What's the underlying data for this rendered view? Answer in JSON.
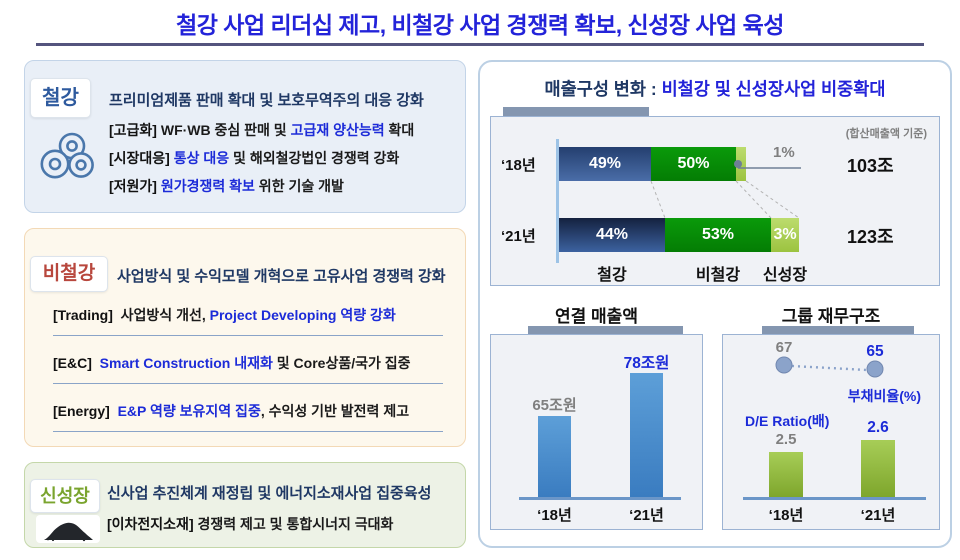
{
  "slide_title": "철강 사업 리더십 제고, 비철강 사업 경쟁력 확보, 신성장 사업 육성",
  "colors": {
    "title_blue": "#2323d9",
    "navy": "#1f3864",
    "highlight_blue": "#1c2bd8",
    "steel_label": "#2e5a9e",
    "nonsteel_label": "#b8473d",
    "newgrowth_label": "#7aa42e",
    "bar_steel_navy": "#2e4f85",
    "bar_nonsteel_green": "#088c08",
    "bar_newgrowth_lightgreen": "#a6cc52",
    "revenue_bar_blue": "#4a90cf",
    "de_ratio_bar_green": "#96bc40",
    "gray_text": "#7f7f7f"
  },
  "left_panels": [
    {
      "id": "steel",
      "label": "철강",
      "icon": "steel-coils-icon",
      "headline": "프리미엄제품 판매 확대 및 보호무역주의 대응 강화",
      "items": [
        {
          "tag": "[고급화]",
          "pre": " WF·WB 중심 판매 및 ",
          "highlight": "고급재 양산능력",
          "post": " 확대"
        },
        {
          "tag": "[시장대응]",
          "pre": " ",
          "highlight": "통상 대응",
          "post": " 및 해외철강법인 경쟁력 강화"
        },
        {
          "tag": "[저원가]",
          "pre": " ",
          "highlight": "원가경쟁력 확보",
          "post": " 위한 기술 개발"
        }
      ]
    },
    {
      "id": "nonsteel",
      "label": "비철강",
      "headline": "사업방식 및 수익모델 개혁으로 고유사업 경쟁력 강화",
      "items": [
        {
          "tag": "[Trading]",
          "pre": "  사업방식 개선, ",
          "highlight": "Project Developing 역량 강화",
          "post": ""
        },
        {
          "tag": "[E&C]",
          "pre": "  ",
          "highlight": "Smart Construction 내재화",
          "post": " 및 Core상품/국가 집중"
        },
        {
          "tag": "[Energy]",
          "pre": "  ",
          "highlight": "E&P 역량 보유지역 집중",
          "post": ", 수익성 기반 발전력 제고"
        }
      ]
    },
    {
      "id": "newgrowth",
      "label": "신성장",
      "icon": "battery-powder-icon",
      "headline": "신사업 추진체계 재정립 및 에너지소재사업 집중육성",
      "items": [
        {
          "tag": "[이차전지소재]",
          "pre": " 경쟁력 제고 및 통합시너지 극대화",
          "highlight": "",
          "post": ""
        }
      ]
    }
  ],
  "chart_data": [
    {
      "type": "bar",
      "subtype": "horizontal-stacked",
      "title": "매출구성 변화 : 비철강 및 신성장사업 비중확대",
      "title_prefix": "매출구성 변화 : ",
      "title_emphasis": "비철강 및 신성장사업 비중확대",
      "note": "(합산매출액 기준)",
      "categories": [
        "‘18년",
        "‘21년"
      ],
      "series": [
        {
          "name": "철강",
          "values": [
            49,
            44
          ]
        },
        {
          "name": "비철강",
          "values": [
            50,
            53
          ]
        },
        {
          "name": "신성장",
          "values": [
            1,
            3
          ]
        }
      ],
      "bar_labels": [
        [
          "49%",
          "50%",
          "1%"
        ],
        [
          "44%",
          "53%",
          "3%"
        ]
      ],
      "totals": [
        "103조",
        "123조"
      ],
      "callout": {
        "text": "1%",
        "series": "신성장",
        "category": "‘18년"
      },
      "unit": "%"
    },
    {
      "type": "bar",
      "title": "연결 매출액",
      "categories": [
        "‘18년",
        "‘21년"
      ],
      "values": [
        65,
        78
      ],
      "value_labels": [
        "65조원",
        "78조원"
      ],
      "ylim": [
        40,
        80
      ]
    },
    {
      "type": "bar+line",
      "title": "그룹 재무구조",
      "categories": [
        "‘18년",
        "‘21년"
      ],
      "series": [
        {
          "name": "D/E Ratio(배)",
          "type": "bar",
          "values": [
            2.5,
            2.6
          ]
        },
        {
          "name": "부채비율(%)",
          "type": "line",
          "values": [
            67,
            65
          ]
        }
      ],
      "bar_ylim": [
        2.1,
        2.7
      ],
      "line_ylim": [
        55,
        75
      ]
    }
  ]
}
